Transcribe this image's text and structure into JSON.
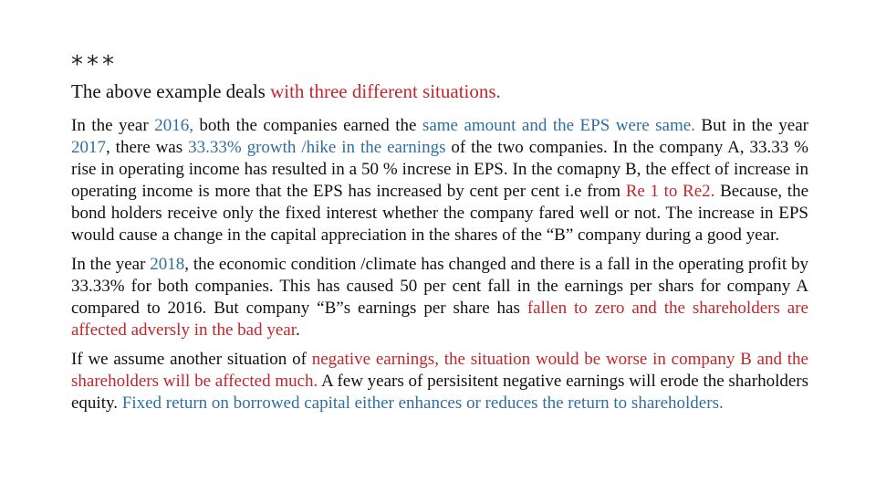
{
  "marker": "***",
  "heading": {
    "plain": "The above example deals ",
    "accent": "with three different situations."
  },
  "para1": {
    "s1": "In the year ",
    "s2": "2016,",
    "s3": " both the companies earned the ",
    "s4": "same amount and the EPS were same.",
    "s5": " But in the year ",
    "s6": "2017",
    "s7": ", there was ",
    "s8": "33.33% growth /hike in the earnings",
    "s9": " of the two companies. In the company A, 33.33 %  rise in operating income has resulted in a 50 % increse in EPS. In the comapny B, the effect of increase in operating income is more that the EPS has increased by cent per cent i.e from ",
    "s10": "Re 1 to Re2.",
    "s11": " Because, the bond holders receive only the fixed interest whether the  company fared well or not. The increase in EPS would cause a change in the capital appreciation in the shares of the “B” company during a good year."
  },
  "para2": {
    "s1": "In the year ",
    "s2": "2018",
    "s3": ", the economic condition /climate has changed and there is a fall in the operating profit by 33.33% for both companies. This has caused 50 per cent fall in the earnings per shars  for company A compared to 2016. But company “B”s  earnings  per share has ",
    "s4": "fallen to zero and the shareholders are affected adversly in the bad year",
    "s5": "."
  },
  "para3": {
    "s1": "If we assume another situation of ",
    "s2": "negative earnings, the situation would be worse in company B and the shareholders will be affected much.",
    "s3": " A few years of persisitent negative earnings will erode the sharholders equity. ",
    "s4": "Fixed return on borrowed capital either enhances or reduces the return to shareholders."
  },
  "colors": {
    "blue": "#2e6fa0",
    "red": "#c0262b",
    "text": "#111111"
  }
}
